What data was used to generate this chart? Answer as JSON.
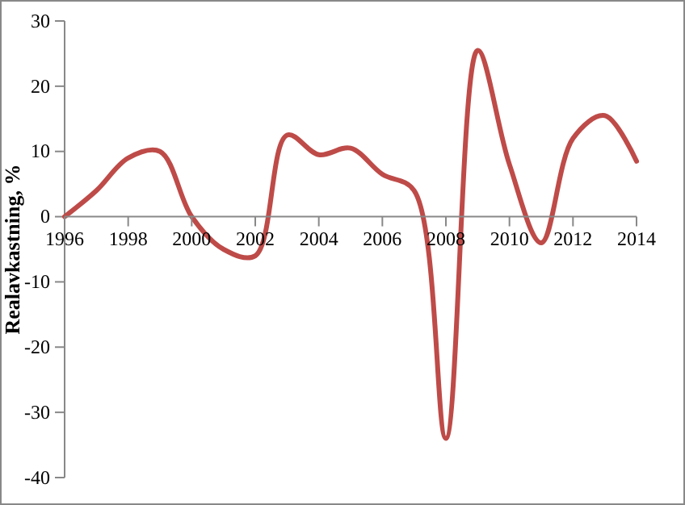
{
  "chart_data": {
    "type": "line",
    "ylabel": "Realavkastning, %",
    "x": [
      1996,
      1997,
      1998,
      1999,
      2000,
      2001,
      2002,
      2003,
      2004,
      2005,
      2006,
      2007,
      2008,
      2009,
      2010,
      2011,
      2012,
      2013,
      2014
    ],
    "series": [
      {
        "color": "#be4b48",
        "values": [
          0,
          4,
          9,
          10,
          0,
          -5,
          -6,
          12.5,
          9.5,
          10.5,
          6.5,
          4,
          -34,
          25.5,
          8,
          -4,
          12,
          15.5,
          8.5
        ]
      }
    ],
    "xlim": [
      1996,
      2014
    ],
    "xticks": [
      1996,
      1998,
      2000,
      2002,
      2004,
      2006,
      2008,
      2010,
      2012,
      2014
    ],
    "ylim": [
      -40,
      30
    ],
    "yticks": [
      -40,
      -30,
      -20,
      -10,
      0,
      10,
      20,
      30
    ],
    "grid": false,
    "marker": "none",
    "line_style": "solid"
  }
}
